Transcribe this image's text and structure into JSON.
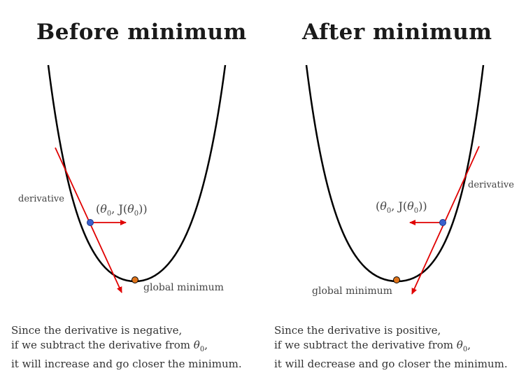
{
  "panels": [
    {
      "title": "Before minimum",
      "derivative_label": "derivative",
      "point_label_prefix": "(",
      "point_label_theta": "θ",
      "point_label_sub": "0",
      "point_label_mid": ", J(",
      "point_label_theta2": "θ",
      "point_label_sub2": "0",
      "point_label_suffix": "))",
      "minimum_label": "global minimum",
      "caption_line1": "Since the derivative is negative,",
      "caption_line2_pre": "if we subtract the derivative from ",
      "caption_line2_theta": "θ",
      "caption_line2_sub": "0",
      "caption_line2_post": ",",
      "caption_line3": "it will increase and go closer the minimum."
    },
    {
      "title": "After minimum",
      "derivative_label": "derivative",
      "point_label_prefix": "(",
      "point_label_theta": "θ",
      "point_label_sub": "0",
      "point_label_mid": ", J(",
      "point_label_theta2": "θ",
      "point_label_sub2": "0",
      "point_label_suffix": "))",
      "minimum_label": "global minimum",
      "caption_line1": "Since the derivative is positive,",
      "caption_line2_pre": "if we subtract the derivative from ",
      "caption_line2_theta": "θ",
      "caption_line2_sub": "0",
      "caption_line2_post": ",",
      "caption_line3": "it will decrease and go closer the minimum."
    }
  ],
  "colors": {
    "curve": "#000000",
    "tangent": "#e00000",
    "point": "#3a5fcd",
    "minimum": "#e0741a"
  }
}
